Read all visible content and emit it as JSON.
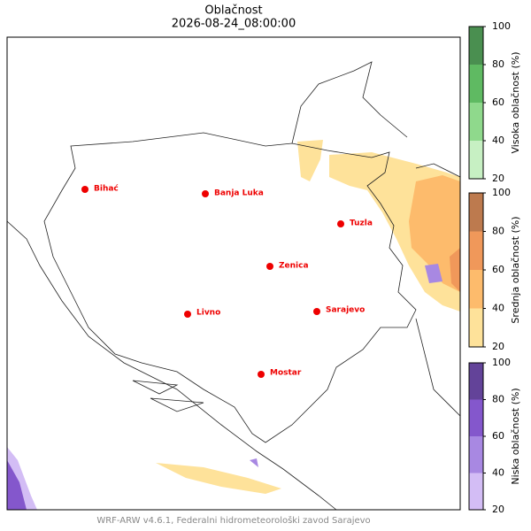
{
  "title": "Oblačnost",
  "subtitle": "2026-08-24_08:00:00",
  "cities": [
    "Bihać",
    "Banja Luka",
    "Tuzla",
    "Zenica",
    "Livno",
    "Sarajevo",
    "Mostar"
  ],
  "colorbars": [
    {
      "label": "Visoka oblačnost (%)",
      "ticks": [
        20,
        40,
        60,
        80,
        100
      ],
      "colors": [
        "#c7f0c3",
        "#8fd98c",
        "#5fba62",
        "#4a8f50"
      ]
    },
    {
      "label": "Srednja oblačnost (%)",
      "ticks": [
        20,
        40,
        60,
        80,
        100
      ],
      "colors": [
        "#fee29a",
        "#fdbb6c",
        "#f0985a",
        "#bd7a4e"
      ]
    },
    {
      "label": "Niska oblačnost (%)",
      "ticks": [
        20,
        40,
        60,
        80,
        100
      ],
      "colors": [
        "#d3bdf5",
        "#a888e2",
        "#8457cc",
        "#634399"
      ]
    }
  ],
  "footer": "WRF-ARW v4.6.1, Federalni hidrometeorološki zavod Sarajevo"
}
